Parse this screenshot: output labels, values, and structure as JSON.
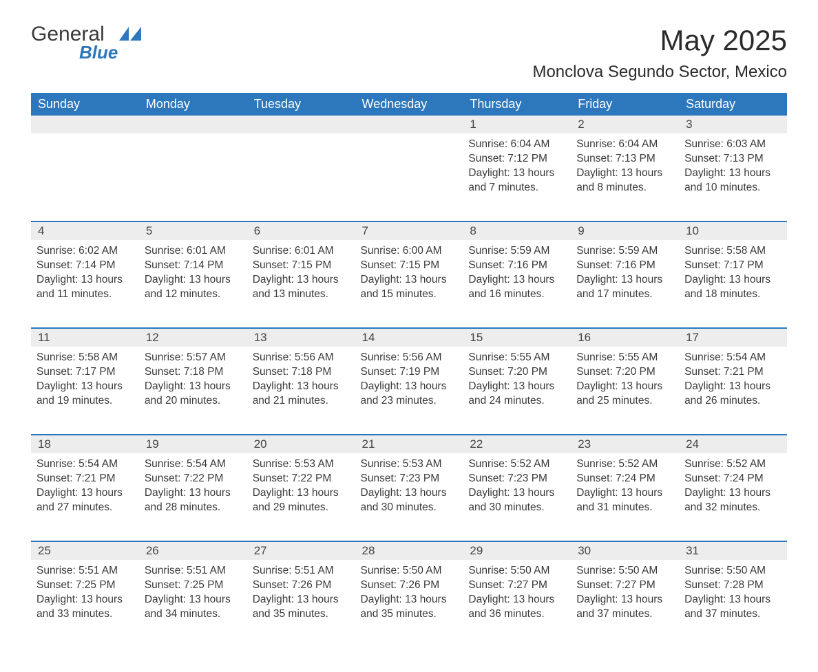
{
  "logo": {
    "word1": "General",
    "word2": "Blue"
  },
  "title": "May 2025",
  "location": "Monclova Segundo Sector, Mexico",
  "colors": {
    "header_bg": "#2d77bd",
    "header_text": "#ffffff",
    "daynum_bg": "#ededed",
    "border": "#2d77bd",
    "text": "#3a3a3a",
    "background": "#ffffff"
  },
  "weekdays": [
    "Sunday",
    "Monday",
    "Tuesday",
    "Wednesday",
    "Thursday",
    "Friday",
    "Saturday"
  ],
  "weeks": [
    {
      "nums": [
        "",
        "",
        "",
        "",
        "1",
        "2",
        "3"
      ],
      "cells": [
        null,
        null,
        null,
        null,
        {
          "sunrise": "6:04 AM",
          "sunset": "7:12 PM",
          "daylight": "13 hours and 7 minutes."
        },
        {
          "sunrise": "6:04 AM",
          "sunset": "7:13 PM",
          "daylight": "13 hours and 8 minutes."
        },
        {
          "sunrise": "6:03 AM",
          "sunset": "7:13 PM",
          "daylight": "13 hours and 10 minutes."
        }
      ]
    },
    {
      "nums": [
        "4",
        "5",
        "6",
        "7",
        "8",
        "9",
        "10"
      ],
      "cells": [
        {
          "sunrise": "6:02 AM",
          "sunset": "7:14 PM",
          "daylight": "13 hours and 11 minutes."
        },
        {
          "sunrise": "6:01 AM",
          "sunset": "7:14 PM",
          "daylight": "13 hours and 12 minutes."
        },
        {
          "sunrise": "6:01 AM",
          "sunset": "7:15 PM",
          "daylight": "13 hours and 13 minutes."
        },
        {
          "sunrise": "6:00 AM",
          "sunset": "7:15 PM",
          "daylight": "13 hours and 15 minutes."
        },
        {
          "sunrise": "5:59 AM",
          "sunset": "7:16 PM",
          "daylight": "13 hours and 16 minutes."
        },
        {
          "sunrise": "5:59 AM",
          "sunset": "7:16 PM",
          "daylight": "13 hours and 17 minutes."
        },
        {
          "sunrise": "5:58 AM",
          "sunset": "7:17 PM",
          "daylight": "13 hours and 18 minutes."
        }
      ]
    },
    {
      "nums": [
        "11",
        "12",
        "13",
        "14",
        "15",
        "16",
        "17"
      ],
      "cells": [
        {
          "sunrise": "5:58 AM",
          "sunset": "7:17 PM",
          "daylight": "13 hours and 19 minutes."
        },
        {
          "sunrise": "5:57 AM",
          "sunset": "7:18 PM",
          "daylight": "13 hours and 20 minutes."
        },
        {
          "sunrise": "5:56 AM",
          "sunset": "7:18 PM",
          "daylight": "13 hours and 21 minutes."
        },
        {
          "sunrise": "5:56 AM",
          "sunset": "7:19 PM",
          "daylight": "13 hours and 23 minutes."
        },
        {
          "sunrise": "5:55 AM",
          "sunset": "7:20 PM",
          "daylight": "13 hours and 24 minutes."
        },
        {
          "sunrise": "5:55 AM",
          "sunset": "7:20 PM",
          "daylight": "13 hours and 25 minutes."
        },
        {
          "sunrise": "5:54 AM",
          "sunset": "7:21 PM",
          "daylight": "13 hours and 26 minutes."
        }
      ]
    },
    {
      "nums": [
        "18",
        "19",
        "20",
        "21",
        "22",
        "23",
        "24"
      ],
      "cells": [
        {
          "sunrise": "5:54 AM",
          "sunset": "7:21 PM",
          "daylight": "13 hours and 27 minutes."
        },
        {
          "sunrise": "5:54 AM",
          "sunset": "7:22 PM",
          "daylight": "13 hours and 28 minutes."
        },
        {
          "sunrise": "5:53 AM",
          "sunset": "7:22 PM",
          "daylight": "13 hours and 29 minutes."
        },
        {
          "sunrise": "5:53 AM",
          "sunset": "7:23 PM",
          "daylight": "13 hours and 30 minutes."
        },
        {
          "sunrise": "5:52 AM",
          "sunset": "7:23 PM",
          "daylight": "13 hours and 30 minutes."
        },
        {
          "sunrise": "5:52 AM",
          "sunset": "7:24 PM",
          "daylight": "13 hours and 31 minutes."
        },
        {
          "sunrise": "5:52 AM",
          "sunset": "7:24 PM",
          "daylight": "13 hours and 32 minutes."
        }
      ]
    },
    {
      "nums": [
        "25",
        "26",
        "27",
        "28",
        "29",
        "30",
        "31"
      ],
      "cells": [
        {
          "sunrise": "5:51 AM",
          "sunset": "7:25 PM",
          "daylight": "13 hours and 33 minutes."
        },
        {
          "sunrise": "5:51 AM",
          "sunset": "7:25 PM",
          "daylight": "13 hours and 34 minutes."
        },
        {
          "sunrise": "5:51 AM",
          "sunset": "7:26 PM",
          "daylight": "13 hours and 35 minutes."
        },
        {
          "sunrise": "5:50 AM",
          "sunset": "7:26 PM",
          "daylight": "13 hours and 35 minutes."
        },
        {
          "sunrise": "5:50 AM",
          "sunset": "7:27 PM",
          "daylight": "13 hours and 36 minutes."
        },
        {
          "sunrise": "5:50 AM",
          "sunset": "7:27 PM",
          "daylight": "13 hours and 37 minutes."
        },
        {
          "sunrise": "5:50 AM",
          "sunset": "7:28 PM",
          "daylight": "13 hours and 37 minutes."
        }
      ]
    }
  ],
  "labels": {
    "sunrise": "Sunrise: ",
    "sunset": "Sunset: ",
    "daylight": "Daylight: "
  }
}
